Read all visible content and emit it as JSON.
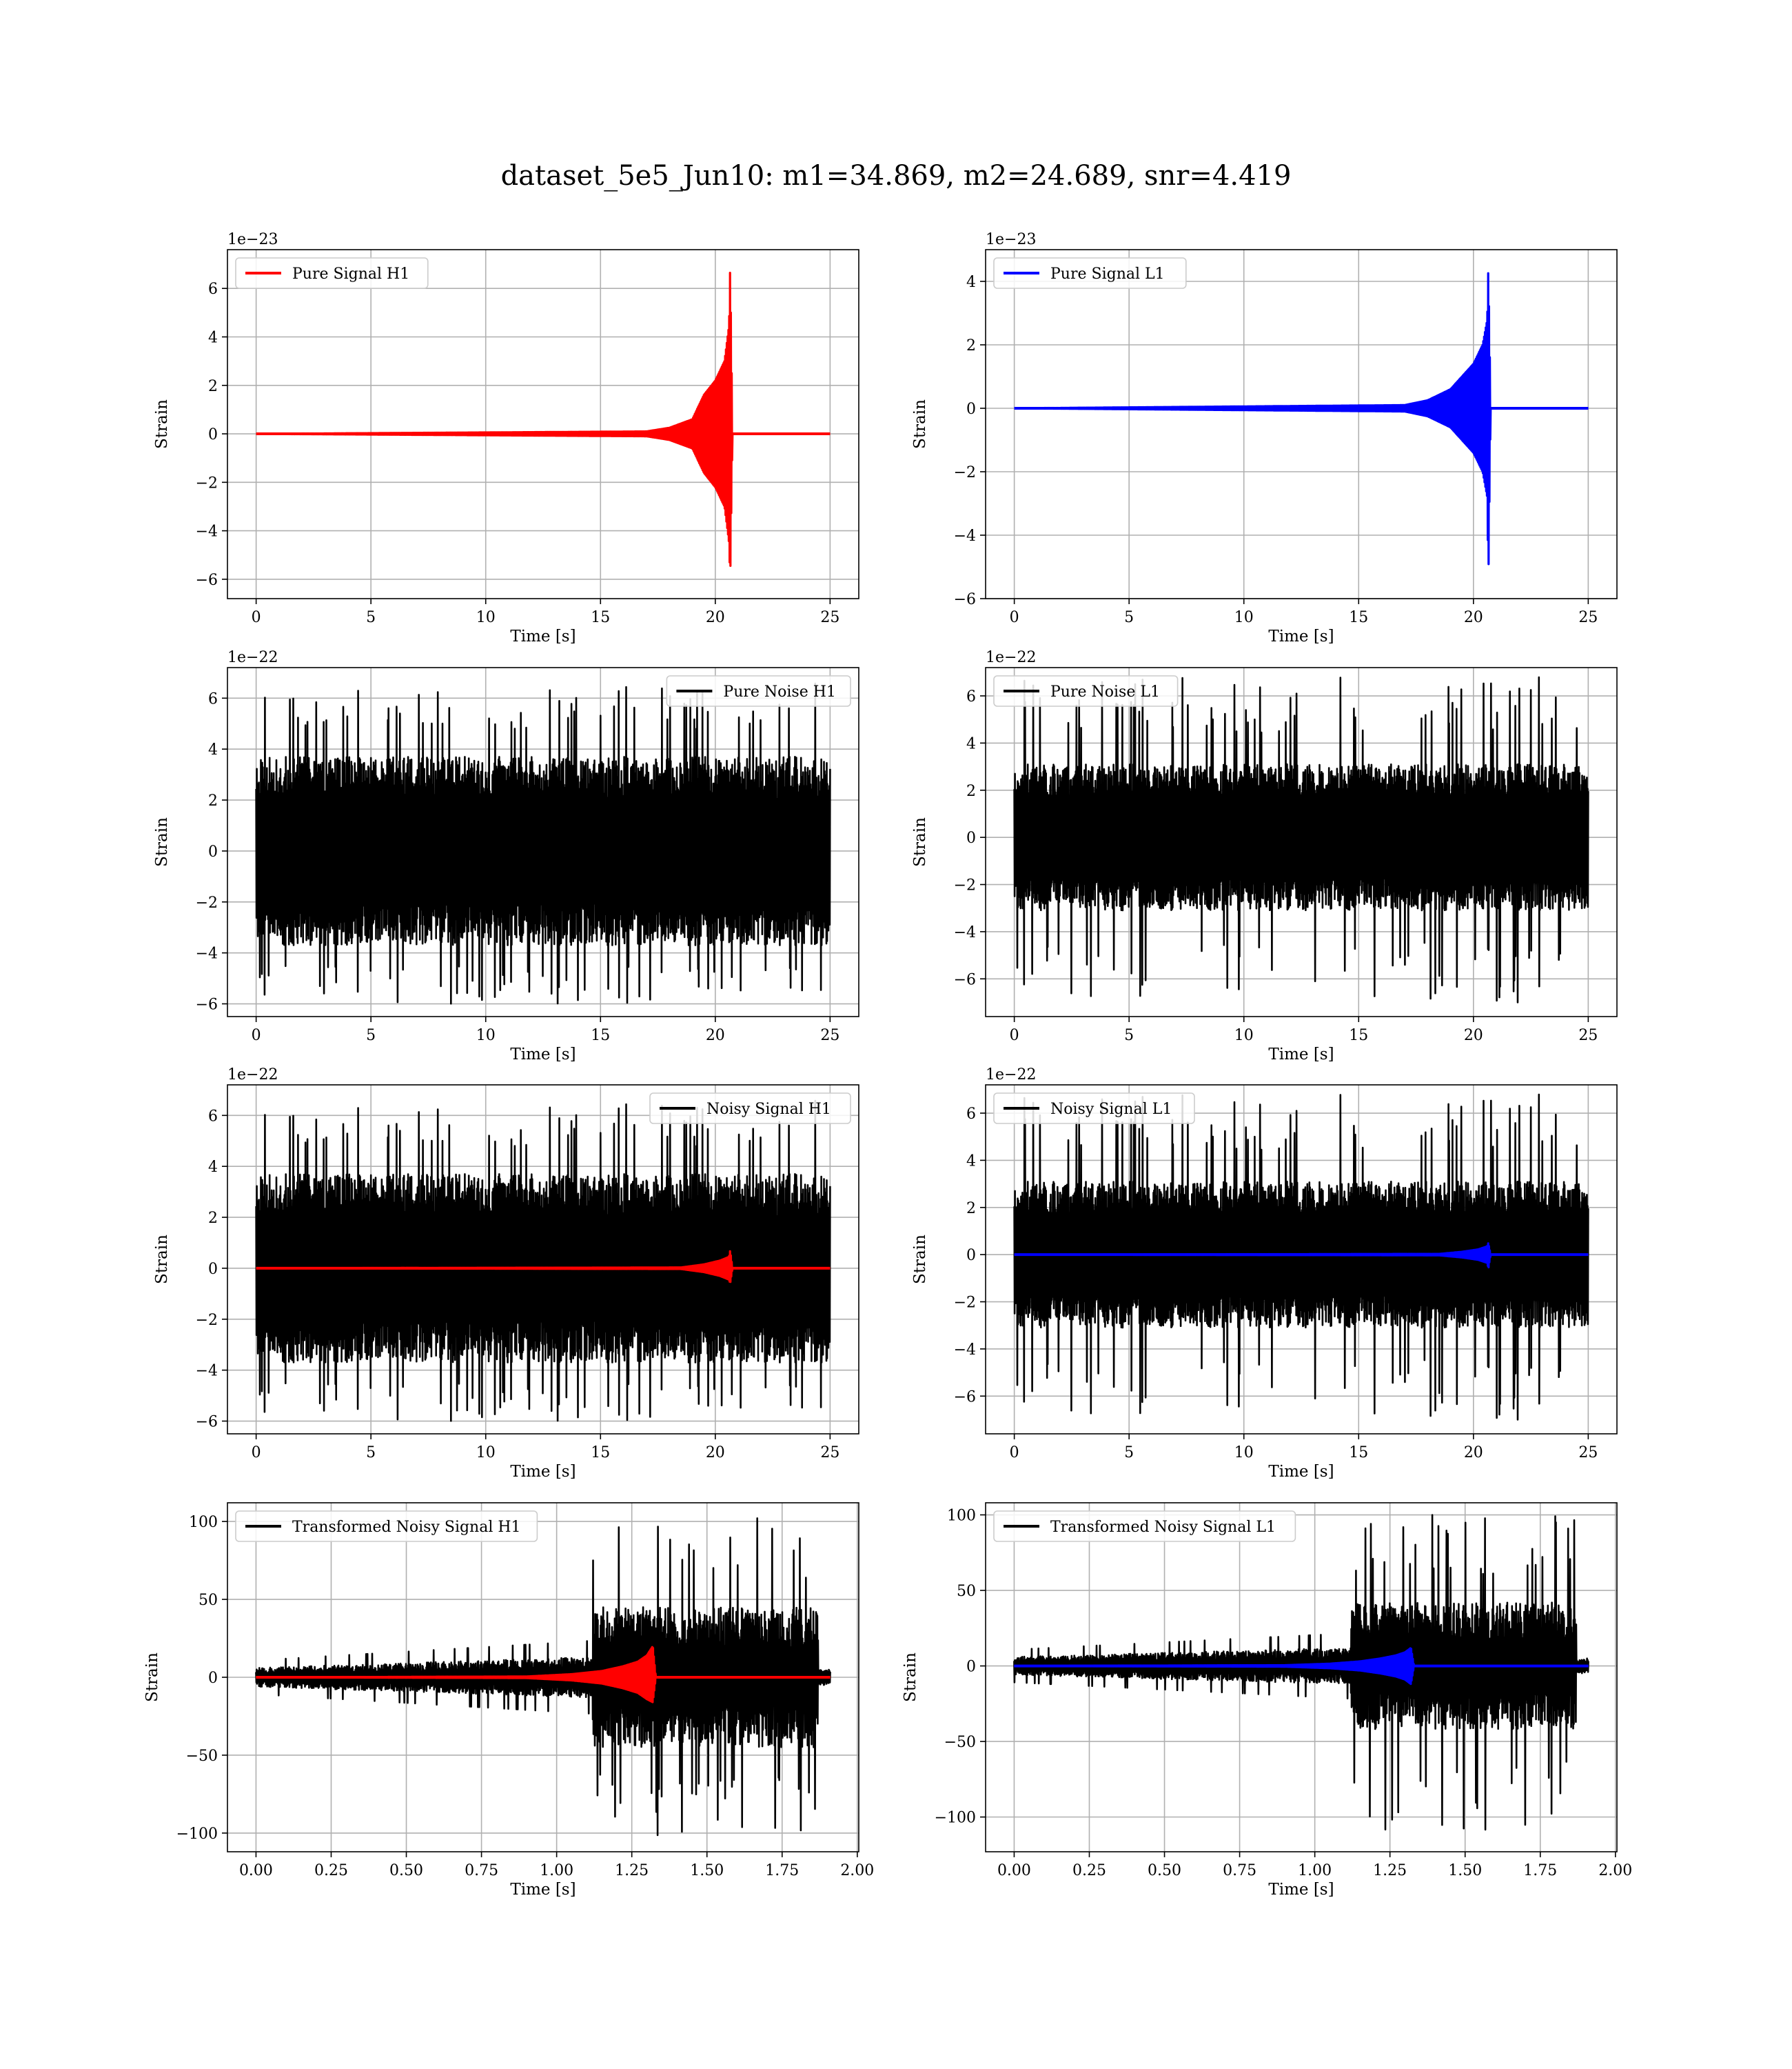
{
  "figure": {
    "title": "dataset_5e5_Jun10: m1=34.869, m2=24.689, snr=4.419"
  },
  "chart_data": [
    {
      "type": "line",
      "id": "pure-signal-h1",
      "offset_text": "1e−23",
      "xlabel": "Time [s]",
      "ylabel": "Strain",
      "xlim": [
        -1.25,
        26.25
      ],
      "ylim": [
        -6.8,
        7.6
      ],
      "xticks": [
        0,
        5,
        10,
        15,
        20,
        25
      ],
      "xtick_labels": [
        "0",
        "5",
        "10",
        "15",
        "20",
        "25"
      ],
      "yticks": [
        -6,
        -4,
        -2,
        0,
        2,
        4,
        6
      ],
      "ytick_labels": [
        "−6",
        "−4",
        "−2",
        "0",
        "2",
        "4",
        "6"
      ],
      "grid": true,
      "legend": "upper left",
      "series": [
        {
          "name": "Pure Signal H1",
          "color": "#ff0000",
          "kind": "chirp",
          "x": [
            0,
            17,
            18,
            19,
            19.5,
            20.0,
            20.4,
            20.6,
            20.65,
            20.75,
            25
          ],
          "envelope_upper": [
            0,
            0.1,
            0.25,
            0.6,
            1.6,
            2.2,
            3.0,
            4.5,
            7.0,
            0,
            0
          ],
          "envelope_lower": [
            0,
            -0.1,
            -0.25,
            -0.6,
            -1.6,
            -2.2,
            -3.0,
            -4.5,
            -6.1,
            0,
            0
          ]
        }
      ]
    },
    {
      "type": "line",
      "id": "pure-signal-l1",
      "offset_text": "1e−23",
      "xlabel": "Time [s]",
      "ylabel": "Strain",
      "xlim": [
        -1.25,
        26.25
      ],
      "ylim": [
        -6.0,
        5.0
      ],
      "xticks": [
        0,
        5,
        10,
        15,
        20,
        25
      ],
      "xtick_labels": [
        "0",
        "5",
        "10",
        "15",
        "20",
        "25"
      ],
      "yticks": [
        -6,
        -4,
        -2,
        0,
        2,
        4
      ],
      "ytick_labels": [
        "−6",
        "−4",
        "−2",
        "0",
        "2",
        "4"
      ],
      "grid": true,
      "legend": "upper left",
      "series": [
        {
          "name": "Pure Signal L1",
          "color": "#0000ff",
          "kind": "chirp",
          "x": [
            0,
            17,
            18,
            19,
            19.5,
            20.0,
            20.4,
            20.6,
            20.65,
            20.75,
            25
          ],
          "envelope_upper": [
            0,
            0.1,
            0.25,
            0.6,
            1.0,
            1.4,
            2.0,
            2.8,
            4.5,
            0,
            0
          ],
          "envelope_lower": [
            0,
            -0.1,
            -0.25,
            -0.6,
            -1.0,
            -1.4,
            -2.0,
            -2.8,
            -5.5,
            0,
            0
          ]
        }
      ]
    },
    {
      "type": "line",
      "id": "pure-noise-h1",
      "offset_text": "1e−22",
      "xlabel": "Time [s]",
      "ylabel": "Strain",
      "xlim": [
        -1.25,
        26.25
      ],
      "ylim": [
        -6.5,
        7.2
      ],
      "xticks": [
        0,
        5,
        10,
        15,
        20,
        25
      ],
      "xtick_labels": [
        "0",
        "5",
        "10",
        "15",
        "20",
        "25"
      ],
      "yticks": [
        -6,
        -4,
        -2,
        0,
        2,
        4,
        6
      ],
      "ytick_labels": [
        "−6",
        "−4",
        "−2",
        "0",
        "2",
        "4",
        "6"
      ],
      "grid": true,
      "legend": "upper right",
      "series": [
        {
          "name": "Pure Noise H1",
          "color": "#000000",
          "kind": "noise",
          "x_range": [
            0,
            25
          ],
          "band": 3.7,
          "peak_max": 6.6,
          "peak_min": -6.0,
          "seed": 11
        }
      ]
    },
    {
      "type": "line",
      "id": "pure-noise-l1",
      "offset_text": "1e−22",
      "xlabel": "Time [s]",
      "ylabel": "Strain",
      "xlim": [
        -1.25,
        26.25
      ],
      "ylim": [
        -7.6,
        7.2
      ],
      "xticks": [
        0,
        5,
        10,
        15,
        20,
        25
      ],
      "xtick_labels": [
        "0",
        "5",
        "10",
        "15",
        "20",
        "25"
      ],
      "yticks": [
        -6,
        -4,
        -2,
        0,
        2,
        4,
        6
      ],
      "ytick_labels": [
        "−6",
        "−4",
        "−2",
        "0",
        "2",
        "4",
        "6"
      ],
      "grid": true,
      "legend": "upper left",
      "series": [
        {
          "name": "Pure Noise L1",
          "color": "#000000",
          "kind": "noise",
          "x_range": [
            0,
            25
          ],
          "band": 3.1,
          "peak_max": 6.8,
          "peak_min": -7.0,
          "seed": 23
        }
      ]
    },
    {
      "type": "line",
      "id": "noisy-signal-h1",
      "offset_text": "1e−22",
      "xlabel": "Time [s]",
      "ylabel": "Strain",
      "xlim": [
        -1.25,
        26.25
      ],
      "ylim": [
        -6.5,
        7.2
      ],
      "xticks": [
        0,
        5,
        10,
        15,
        20,
        25
      ],
      "xtick_labels": [
        "0",
        "5",
        "10",
        "15",
        "20",
        "25"
      ],
      "yticks": [
        -6,
        -4,
        -2,
        0,
        2,
        4,
        6
      ],
      "ytick_labels": [
        "−6",
        "−4",
        "−2",
        "0",
        "2",
        "4",
        "6"
      ],
      "grid": true,
      "legend": "upper right",
      "series": [
        {
          "name": "Noisy Signal H1",
          "color": "#000000",
          "kind": "noise",
          "x_range": [
            0,
            25
          ],
          "band": 3.7,
          "peak_max": 6.6,
          "peak_min": -6.0,
          "seed": 11
        },
        {
          "color": "#ff0000",
          "kind": "chirp",
          "x": [
            0,
            18.5,
            19.5,
            20.2,
            20.6,
            20.65,
            20.75,
            25
          ],
          "envelope_upper": [
            0,
            0.03,
            0.15,
            0.3,
            0.45,
            0.7,
            0,
            0
          ],
          "envelope_lower": [
            0,
            -0.03,
            -0.15,
            -0.3,
            -0.45,
            -0.6,
            0,
            0
          ]
        }
      ]
    },
    {
      "type": "line",
      "id": "noisy-signal-l1",
      "offset_text": "1e−22",
      "xlabel": "Time [s]",
      "ylabel": "Strain",
      "xlim": [
        -1.25,
        26.25
      ],
      "ylim": [
        -7.6,
        7.2
      ],
      "xticks": [
        0,
        5,
        10,
        15,
        20,
        25
      ],
      "xtick_labels": [
        "0",
        "5",
        "10",
        "15",
        "20",
        "25"
      ],
      "yticks": [
        -6,
        -4,
        -2,
        0,
        2,
        4,
        6
      ],
      "ytick_labels": [
        "−6",
        "−4",
        "−2",
        "0",
        "2",
        "4",
        "6"
      ],
      "grid": true,
      "legend": "upper left",
      "series": [
        {
          "name": "Noisy Signal L1",
          "color": "#000000",
          "kind": "noise",
          "x_range": [
            0,
            25
          ],
          "band": 3.1,
          "peak_max": 6.8,
          "peak_min": -7.0,
          "seed": 23
        },
        {
          "color": "#0000ff",
          "kind": "chirp",
          "x": [
            0,
            18.5,
            19.5,
            20.2,
            20.6,
            20.65,
            20.75,
            25
          ],
          "envelope_upper": [
            0,
            0.03,
            0.12,
            0.22,
            0.35,
            0.5,
            0,
            0
          ],
          "envelope_lower": [
            0,
            -0.03,
            -0.12,
            -0.22,
            -0.35,
            -0.6,
            0,
            0
          ]
        }
      ]
    },
    {
      "type": "line",
      "id": "transformed-noisy-signal-h1",
      "xlabel": "Time [s]",
      "ylabel": "Strain",
      "xlim": [
        -0.095,
        2.005
      ],
      "ylim": [
        -112,
        112
      ],
      "xticks": [
        0,
        0.25,
        0.5,
        0.75,
        1.0,
        1.25,
        1.5,
        1.75,
        2.0
      ],
      "xtick_labels": [
        "0.00",
        "0.25",
        "0.50",
        "0.75",
        "1.00",
        "1.25",
        "1.50",
        "1.75",
        "2.00"
      ],
      "yticks": [
        -100,
        -50,
        0,
        50,
        100
      ],
      "ytick_labels": [
        "−100",
        "−50",
        "0",
        "50",
        "100"
      ],
      "grid": true,
      "legend": "upper left",
      "series": [
        {
          "name": "Transformed Noisy Signal H1",
          "color": "#000000",
          "kind": "whitened",
          "x_range": [
            0,
            1.91
          ],
          "quiet_end": 1.12,
          "loud_end": 1.87,
          "quiet_band": [
            6,
            13
          ],
          "loud_band": 45,
          "peak_max": 103,
          "peak_min": -103,
          "seed": 5
        },
        {
          "color": "#ff0000",
          "kind": "chirp",
          "x": [
            0,
            0.9,
            1.05,
            1.15,
            1.22,
            1.27,
            1.3,
            1.32,
            1.33,
            1.91
          ],
          "envelope_upper": [
            0,
            0.5,
            2,
            4,
            7,
            10,
            14,
            20,
            0,
            0
          ],
          "envelope_lower": [
            0,
            -0.5,
            -2,
            -4,
            -7,
            -10,
            -14,
            -16,
            0,
            0
          ]
        }
      ]
    },
    {
      "type": "line",
      "id": "transformed-noisy-signal-l1",
      "xlabel": "Time [s]",
      "ylabel": "Strain",
      "xlim": [
        -0.095,
        2.005
      ],
      "ylim": [
        -123,
        108
      ],
      "xticks": [
        0,
        0.25,
        0.5,
        0.75,
        1.0,
        1.25,
        1.5,
        1.75,
        2.0
      ],
      "xtick_labels": [
        "0.00",
        "0.25",
        "0.50",
        "0.75",
        "1.00",
        "1.25",
        "1.50",
        "1.75",
        "2.00"
      ],
      "yticks": [
        -100,
        -50,
        0,
        50,
        100
      ],
      "ytick_labels": [
        "−100",
        "−50",
        "0",
        "50",
        "100"
      ],
      "grid": true,
      "legend": "upper left",
      "series": [
        {
          "name": "Transformed Noisy Signal L1",
          "color": "#000000",
          "kind": "whitened",
          "x_range": [
            0,
            1.91
          ],
          "quiet_end": 1.12,
          "loud_end": 1.87,
          "quiet_band": [
            6,
            12
          ],
          "loud_band": 42,
          "peak_max": 100,
          "peak_min": -110,
          "seed": 9
        },
        {
          "color": "#0000ff",
          "kind": "chirp",
          "x": [
            0,
            0.9,
            1.05,
            1.15,
            1.22,
            1.27,
            1.3,
            1.32,
            1.33,
            1.91
          ],
          "envelope_upper": [
            0,
            0.5,
            1.5,
            3,
            5,
            7,
            9,
            12,
            0,
            0
          ],
          "envelope_lower": [
            0,
            -0.5,
            -1.5,
            -3,
            -5,
            -7,
            -9,
            -12,
            0,
            0
          ]
        }
      ]
    }
  ]
}
